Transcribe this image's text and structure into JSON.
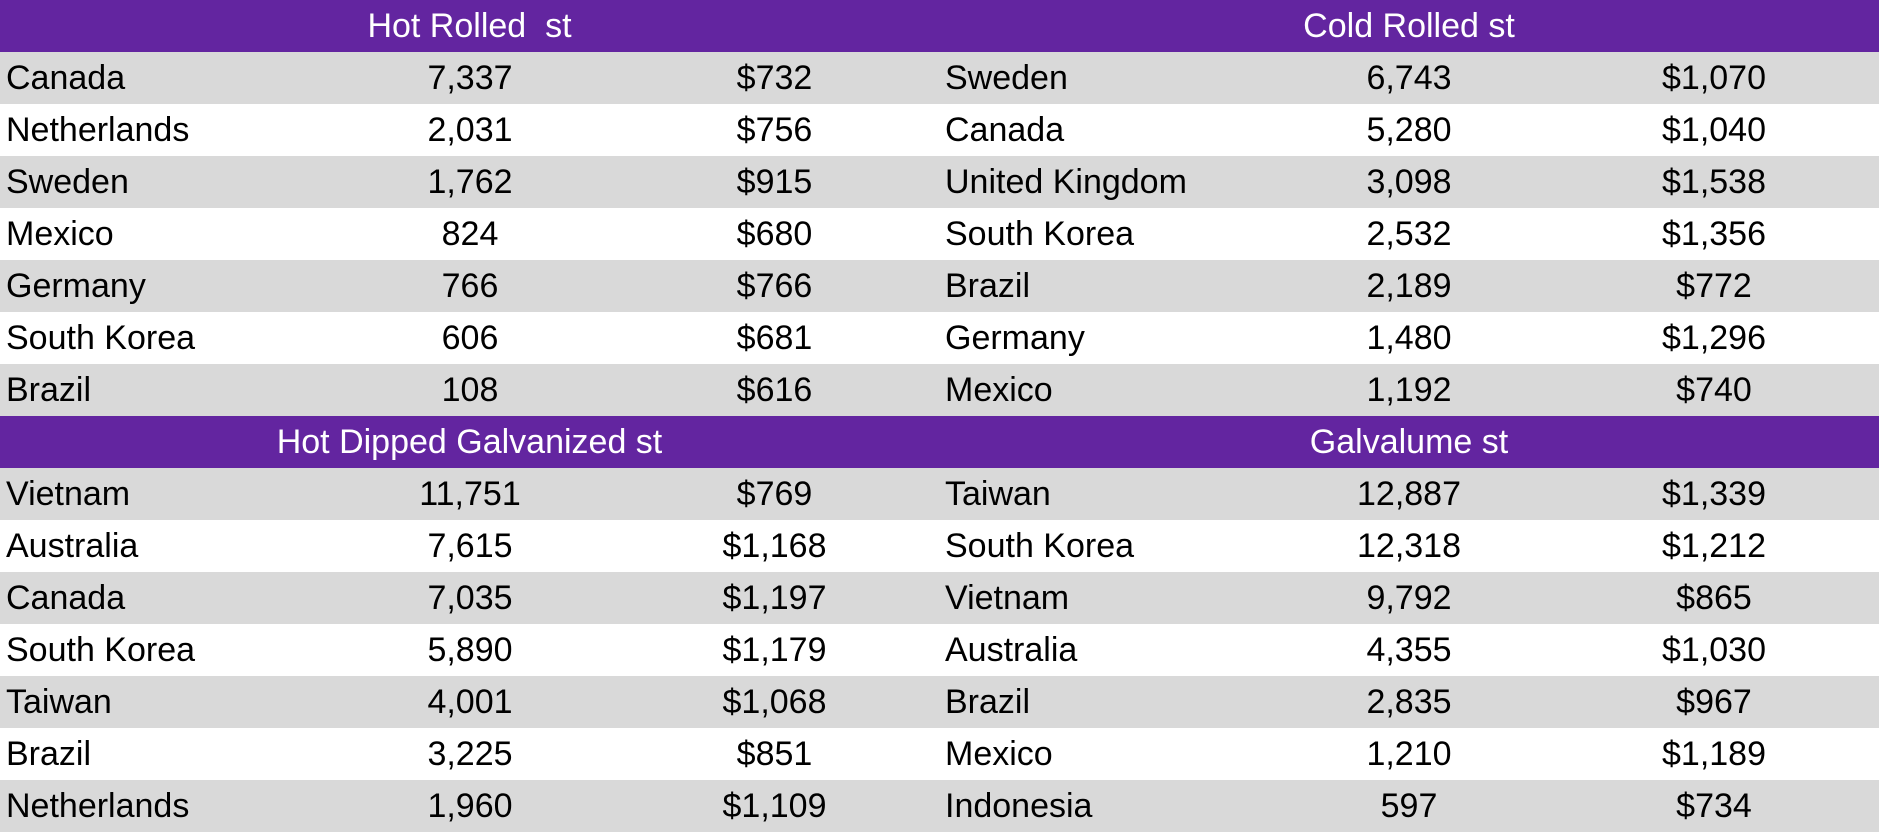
{
  "colors": {
    "header_bg": "#6325a0",
    "header_text": "#ffffff",
    "stripe_bg": "#d9d9d9",
    "row_bg": "#ffffff"
  },
  "sections": [
    {
      "left": {
        "title": "Hot Rolled  st",
        "rows": [
          {
            "country": "Canada",
            "tons": "7,337",
            "price": "$732"
          },
          {
            "country": "Netherlands",
            "tons": "2,031",
            "price": "$756"
          },
          {
            "country": "Sweden",
            "tons": "1,762",
            "price": "$915"
          },
          {
            "country": "Mexico",
            "tons": "824",
            "price": "$680"
          },
          {
            "country": "Germany",
            "tons": "766",
            "price": "$766"
          },
          {
            "country": "South Korea",
            "tons": "606",
            "price": "$681"
          },
          {
            "country": "Brazil",
            "tons": "108",
            "price": "$616"
          }
        ]
      },
      "right": {
        "title": "Cold Rolled st",
        "rows": [
          {
            "country": "Sweden",
            "tons": "6,743",
            "price": "$1,070"
          },
          {
            "country": "Canada",
            "tons": "5,280",
            "price": "$1,040"
          },
          {
            "country": "United Kingdom",
            "tons": "3,098",
            "price": "$1,538"
          },
          {
            "country": "South Korea",
            "tons": "2,532",
            "price": "$1,356"
          },
          {
            "country": "Brazil",
            "tons": "2,189",
            "price": "$772"
          },
          {
            "country": "Germany",
            "tons": "1,480",
            "price": "$1,296"
          },
          {
            "country": "Mexico",
            "tons": "1,192",
            "price": "$740"
          }
        ]
      }
    },
    {
      "left": {
        "title": "Hot Dipped Galvanized st",
        "rows": [
          {
            "country": "Vietnam",
            "tons": "11,751",
            "price": "$769"
          },
          {
            "country": "Australia",
            "tons": "7,615",
            "price": "$1,168"
          },
          {
            "country": "Canada",
            "tons": "7,035",
            "price": "$1,197"
          },
          {
            "country": "South Korea",
            "tons": "5,890",
            "price": "$1,179"
          },
          {
            "country": "Taiwan",
            "tons": "4,001",
            "price": "$1,068"
          },
          {
            "country": "Brazil",
            "tons": "3,225",
            "price": "$851"
          },
          {
            "country": "Netherlands",
            "tons": "1,960",
            "price": "$1,109"
          }
        ]
      },
      "right": {
        "title": "Galvalume st",
        "rows": [
          {
            "country": "Taiwan",
            "tons": "12,887",
            "price": "$1,339"
          },
          {
            "country": "South Korea",
            "tons": "12,318",
            "price": "$1,212"
          },
          {
            "country": "Vietnam",
            "tons": "9,792",
            "price": "$865"
          },
          {
            "country": "Australia",
            "tons": "4,355",
            "price": "$1,030"
          },
          {
            "country": "Brazil",
            "tons": "2,835",
            "price": "$967"
          },
          {
            "country": "Mexico",
            "tons": "1,210",
            "price": "$1,189"
          },
          {
            "country": "Indonesia",
            "tons": "597",
            "price": "$734"
          }
        ]
      }
    }
  ]
}
